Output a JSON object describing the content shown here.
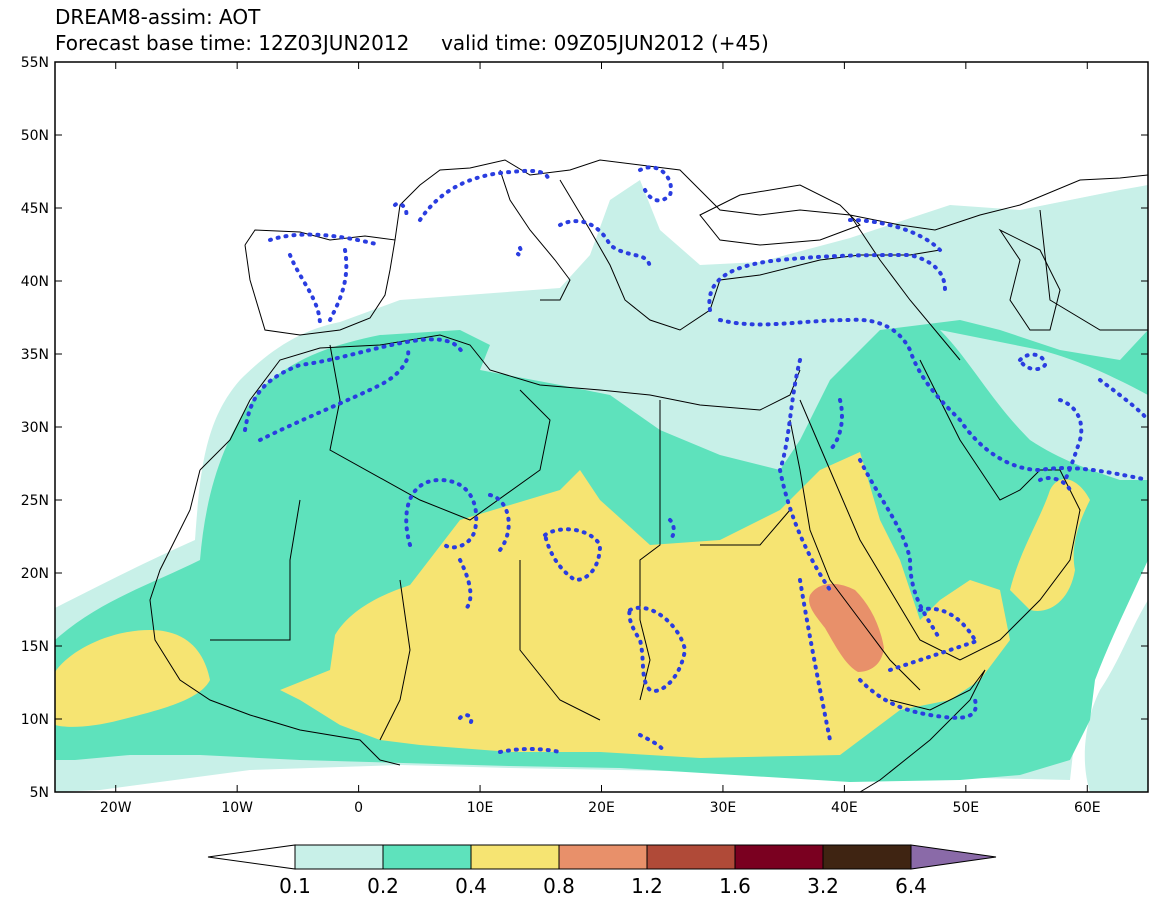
{
  "title": {
    "line1": "DREAM8-assim: AOT",
    "base_time": "Forecast base time: 12Z03JUN2012",
    "valid_time": "valid time: 09Z05JUN2012 (+45)"
  },
  "map": {
    "lon_range": [
      -25,
      65
    ],
    "lat_range": [
      5,
      55
    ],
    "lat_ticks": [
      {
        "value": 55,
        "label": "55N"
      },
      {
        "value": 50,
        "label": "50N"
      },
      {
        "value": 45,
        "label": "45N"
      },
      {
        "value": 40,
        "label": "40N"
      },
      {
        "value": 35,
        "label": "35N"
      },
      {
        "value": 30,
        "label": "30N"
      },
      {
        "value": 25,
        "label": "25N"
      },
      {
        "value": 20,
        "label": "20N"
      },
      {
        "value": 15,
        "label": "15N"
      },
      {
        "value": 10,
        "label": "10N"
      },
      {
        "value": 5,
        "label": "5N"
      }
    ],
    "lon_ticks": [
      {
        "value": -20,
        "label": "20W"
      },
      {
        "value": -10,
        "label": "10W"
      },
      {
        "value": 0,
        "label": "0"
      },
      {
        "value": 10,
        "label": "10E"
      },
      {
        "value": 20,
        "label": "20E"
      },
      {
        "value": 30,
        "label": "30E"
      },
      {
        "value": 40,
        "label": "40E"
      },
      {
        "value": 50,
        "label": "50E"
      },
      {
        "value": 60,
        "label": "60E"
      }
    ]
  },
  "colors": {
    "lev_0_1": "#c8f0e8",
    "lev_0_2": "#5ee2bc",
    "lev_0_4": "#f6e472",
    "lev_0_8": "#e8906a",
    "lev_1_2": "#b04a38",
    "lev_1_6": "#7a0020",
    "lev_3_2": "#3f2412",
    "lev_6_4": "#8a6aa8",
    "coast": "#000000",
    "obs_dots": "#2a3de0"
  },
  "colorbar": {
    "labels": [
      "0.1",
      "0.2",
      "0.4",
      "0.8",
      "1.2",
      "1.6",
      "3.2",
      "6.4"
    ]
  }
}
